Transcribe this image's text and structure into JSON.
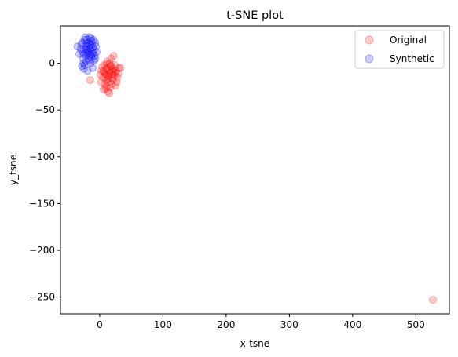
{
  "chart_data": {
    "type": "scatter",
    "title": "t-SNE plot",
    "xlabel": "x-tsne",
    "ylabel": "y_tsne",
    "xlim": [
      -62,
      553
    ],
    "ylim": [
      -268,
      40
    ],
    "xticks": [
      0,
      100,
      200,
      300,
      400,
      500
    ],
    "yticks": [
      0,
      -50,
      -100,
      -150,
      -200,
      -250
    ],
    "grid": false,
    "legend_position": "top-right",
    "series": [
      {
        "name": "Original",
        "color": "#ff0000",
        "alpha": 0.2,
        "points": [
          [
            12,
            -5
          ],
          [
            8,
            -10
          ],
          [
            15,
            -8
          ],
          [
            18,
            -3
          ],
          [
            5,
            -15
          ],
          [
            20,
            -12
          ],
          [
            10,
            -18
          ],
          [
            14,
            -20
          ],
          [
            22,
            -6
          ],
          [
            25,
            -10
          ],
          [
            7,
            -2
          ],
          [
            16,
            0
          ],
          [
            3,
            -8
          ],
          [
            11,
            -25
          ],
          [
            19,
            -22
          ],
          [
            28,
            -15
          ],
          [
            30,
            -5
          ],
          [
            6,
            -28
          ],
          [
            13,
            -30
          ],
          [
            17,
            -26
          ],
          [
            9,
            -12
          ],
          [
            21,
            -18
          ],
          [
            24,
            -2
          ],
          [
            2,
            -20
          ],
          [
            26,
            -8
          ],
          [
            12,
            2
          ],
          [
            18,
            5
          ],
          [
            22,
            8
          ],
          [
            14,
            -14
          ],
          [
            10,
            -6
          ],
          [
            16,
            -11
          ],
          [
            20,
            -16
          ],
          [
            8,
            -22
          ],
          [
            4,
            -4
          ],
          [
            27,
            -20
          ],
          [
            15,
            -32
          ],
          [
            11,
            -1
          ],
          [
            23,
            -13
          ],
          [
            6,
            -9
          ],
          [
            19,
            -7
          ],
          [
            -15,
            -18
          ],
          [
            33,
            -5
          ],
          [
            1,
            -12
          ],
          [
            29,
            -11
          ],
          [
            13,
            -17
          ],
          [
            17,
            -3
          ],
          [
            9,
            -27
          ],
          [
            21,
            -9
          ],
          [
            25,
            -24
          ],
          [
            12,
            -13
          ],
          [
            527,
            -253
          ]
        ]
      },
      {
        "name": "Synthetic",
        "color": "#0000ff",
        "alpha": 0.2,
        "points": [
          [
            -20,
            15
          ],
          [
            -15,
            20
          ],
          [
            -25,
            10
          ],
          [
            -10,
            25
          ],
          [
            -18,
            5
          ],
          [
            -22,
            18
          ],
          [
            -12,
            12
          ],
          [
            -28,
            22
          ],
          [
            -8,
            8
          ],
          [
            -16,
            28
          ],
          [
            -30,
            15
          ],
          [
            -14,
            0
          ],
          [
            -24,
            -2
          ],
          [
            -6,
            18
          ],
          [
            -20,
            25
          ],
          [
            -26,
            5
          ],
          [
            -11,
            -5
          ],
          [
            -19,
            10
          ],
          [
            -23,
            28
          ],
          [
            -9,
            14
          ],
          [
            -17,
            22
          ],
          [
            -27,
            12
          ],
          [
            -13,
            7
          ],
          [
            -21,
            2
          ],
          [
            -7,
            22
          ],
          [
            -29,
            20
          ],
          [
            -15,
            16
          ],
          [
            -25,
            -6
          ],
          [
            -10,
            10
          ],
          [
            -18,
            18
          ],
          [
            -22,
            8
          ],
          [
            -12,
            20
          ],
          [
            -32,
            10
          ],
          [
            -16,
            3
          ],
          [
            -20,
            13
          ],
          [
            -5,
            12
          ],
          [
            -24,
            25
          ],
          [
            -14,
            27
          ],
          [
            -28,
            -3
          ],
          [
            -11,
            17
          ],
          [
            -19,
            -8
          ],
          [
            -23,
            15
          ],
          [
            -9,
            3
          ],
          [
            -17,
            11
          ],
          [
            -35,
            18
          ],
          [
            -13,
            24
          ],
          [
            -21,
            21
          ],
          [
            -7,
            5
          ],
          [
            -26,
            0
          ],
          [
            -15,
            9
          ]
        ]
      }
    ]
  }
}
